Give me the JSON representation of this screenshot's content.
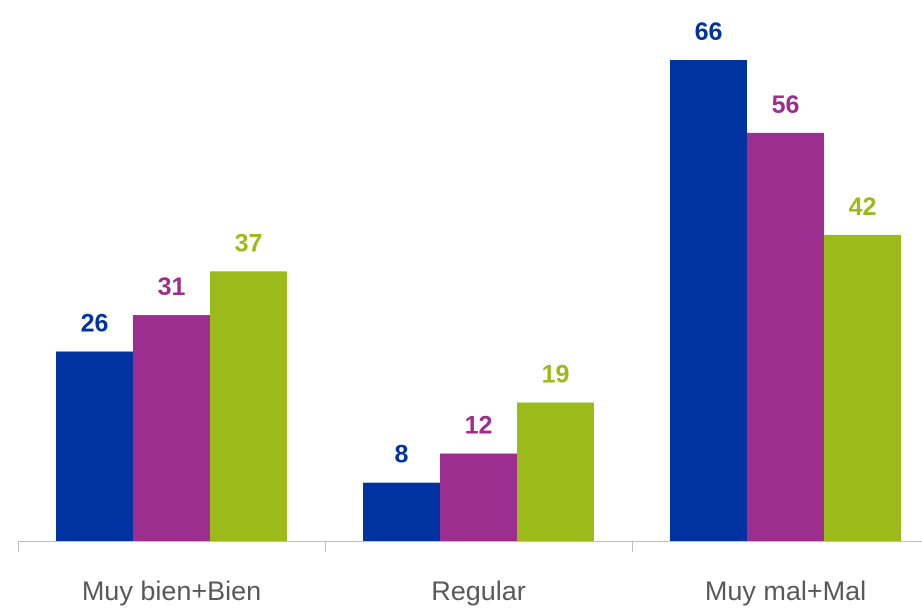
{
  "chart_data": {
    "type": "bar",
    "categories": [
      "Muy bien+Bien",
      "Regular",
      "Muy mal+Mal"
    ],
    "series": [
      {
        "color": "#0033a1",
        "values": [
          26,
          8,
          66
        ]
      },
      {
        "color": "#9b2e8f",
        "values": [
          31,
          12,
          56
        ]
      },
      {
        "color": "#9cbb1b",
        "values": [
          37,
          19,
          42
        ]
      }
    ]
  }
}
